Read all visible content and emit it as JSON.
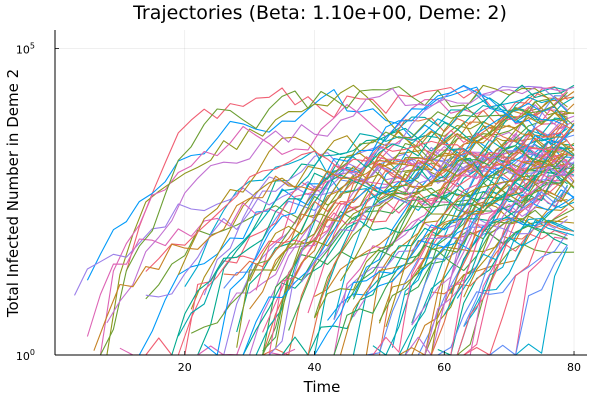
{
  "chart_data": {
    "type": "line",
    "title": "Trajectories (Beta: 1.10e+00, Deme: 2)",
    "xlabel": "Time",
    "ylabel": "Total Infected Number in Deme 2",
    "xlim": [
      0,
      82
    ],
    "ylim_log10": [
      0,
      5.3
    ],
    "x_ticks": [
      {
        "value": 20,
        "label": "20"
      },
      {
        "value": 40,
        "label": "40"
      },
      {
        "value": 60,
        "label": "60"
      },
      {
        "value": 80,
        "label": "80"
      }
    ],
    "y_ticks": [
      {
        "value": 0,
        "label": "10",
        "exp": "0"
      },
      {
        "value": 5,
        "label": "10",
        "exp": "5"
      }
    ],
    "grid": true,
    "legend": "none",
    "x_scale": "linear",
    "y_scale": "log10",
    "series_count": 120,
    "time_range": [
      2,
      80
    ],
    "final_log10_range": [
      2.8,
      4.3
    ],
    "colors": [
      "#009af9",
      "#e26f46",
      "#3da44d",
      "#c271d2",
      "#ac8e18",
      "#00a9ad",
      "#ed5e93",
      "#c68225",
      "#00a98d",
      "#8e971d",
      "#00a9cd",
      "#9b7fe9",
      "#618df6",
      "#f05f73",
      "#dd64b5",
      "#6b9e32"
    ]
  }
}
